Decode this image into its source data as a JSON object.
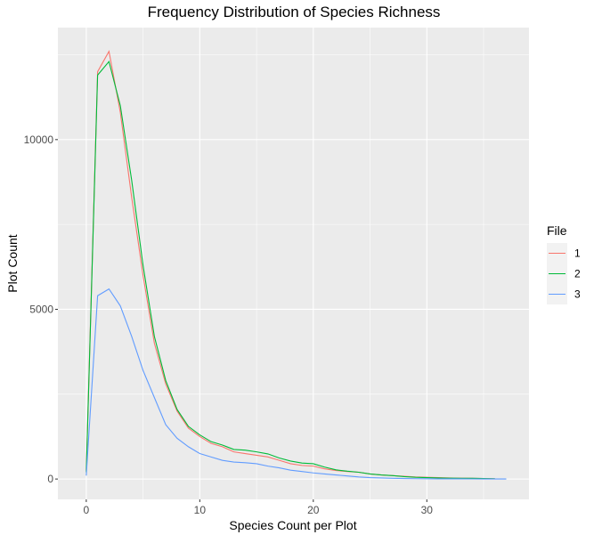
{
  "chart_data": {
    "type": "line",
    "title": "Frequency Distribution of Species Richness",
    "xlabel": "Species Count per Plot",
    "ylabel": "Plot Count",
    "xlim": [
      -2.5,
      39
    ],
    "ylim": [
      -600,
      13300
    ],
    "x_ticks": [
      0,
      10,
      20,
      30
    ],
    "x_tick_labels": [
      "0",
      "10",
      "20",
      "30"
    ],
    "y_ticks": [
      0,
      5000,
      10000
    ],
    "y_tick_labels": [
      "0",
      "5000",
      "10000"
    ],
    "x_minor_ticks": [
      5,
      15,
      25,
      35
    ],
    "y_minor_ticks": [
      2500,
      7500,
      12500
    ],
    "grid": true,
    "legend": {
      "title": "File",
      "position": "right"
    },
    "series": [
      {
        "name": "1",
        "color": "#F8766D",
        "x": [
          0,
          1,
          2,
          3,
          4,
          5,
          6,
          7,
          8,
          9,
          10,
          11,
          12,
          13,
          14,
          15,
          16,
          17,
          18,
          19,
          20,
          21,
          22,
          23,
          24,
          25,
          26,
          27,
          28,
          29,
          30,
          31,
          32,
          33,
          34,
          35,
          36
        ],
        "y": [
          250,
          12000,
          12600,
          10800,
          8300,
          6000,
          4000,
          2800,
          2000,
          1500,
          1250,
          1050,
          950,
          800,
          750,
          700,
          650,
          550,
          450,
          400,
          380,
          300,
          250,
          220,
          200,
          150,
          120,
          100,
          80,
          60,
          50,
          40,
          30,
          25,
          20,
          15,
          10
        ]
      },
      {
        "name": "2",
        "color": "#00BA38",
        "x": [
          0,
          1,
          2,
          3,
          4,
          5,
          6,
          7,
          8,
          9,
          10,
          11,
          12,
          13,
          14,
          15,
          16,
          17,
          18,
          19,
          20,
          21,
          22,
          23,
          24,
          25,
          26,
          27,
          28,
          29,
          30,
          31,
          32,
          33,
          34,
          35,
          36
        ],
        "y": [
          200,
          11900,
          12300,
          11000,
          8800,
          6300,
          4200,
          2900,
          2050,
          1550,
          1300,
          1100,
          1000,
          870,
          850,
          800,
          740,
          620,
          530,
          470,
          450,
          350,
          270,
          230,
          200,
          150,
          120,
          100,
          70,
          50,
          40,
          30,
          25,
          20,
          20,
          15,
          10
        ]
      },
      {
        "name": "3",
        "color": "#619CFF",
        "x": [
          0,
          1,
          2,
          3,
          4,
          5,
          6,
          7,
          8,
          9,
          10,
          11,
          12,
          13,
          14,
          15,
          16,
          17,
          18,
          19,
          20,
          21,
          22,
          23,
          24,
          25,
          26,
          27,
          28,
          29,
          30,
          31,
          32,
          33,
          34,
          35,
          36,
          37
        ],
        "y": [
          100,
          5400,
          5600,
          5100,
          4200,
          3200,
          2400,
          1600,
          1200,
          950,
          750,
          650,
          550,
          500,
          480,
          450,
          380,
          330,
          260,
          220,
          180,
          150,
          120,
          90,
          60,
          40,
          30,
          20,
          15,
          10,
          8,
          6,
          5,
          4,
          3,
          2,
          2,
          1
        ]
      }
    ]
  }
}
